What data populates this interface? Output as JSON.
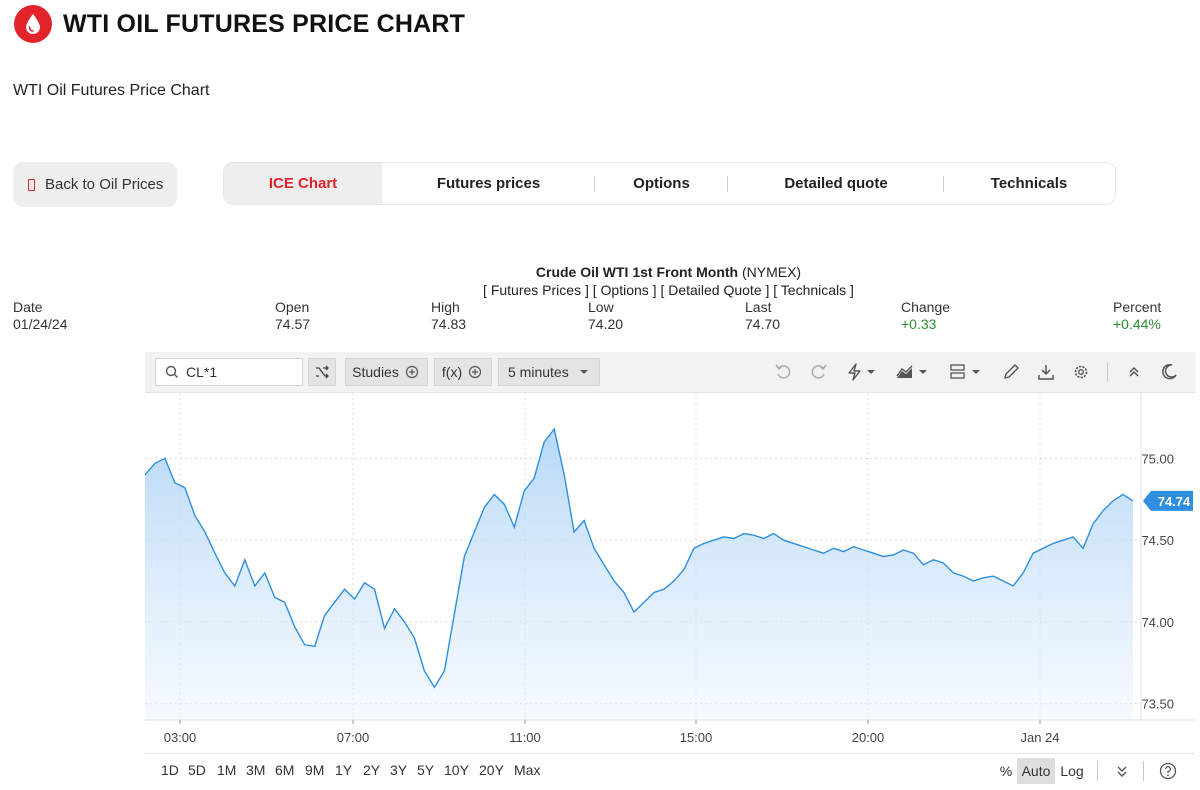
{
  "header": {
    "title": "WTI OIL FUTURES PRICE CHART",
    "logo_icon": "oil-drop-icon",
    "logo_color": "#e3232b"
  },
  "subtitle": "WTI Oil Futures Price Chart",
  "back_button": {
    "label": "Back to Oil Prices",
    "icon": "back-icon"
  },
  "tabs": [
    {
      "label": "ICE Chart",
      "active": true
    },
    {
      "label": "Futures prices"
    },
    {
      "label": "Options"
    },
    {
      "label": "Detailed quote"
    },
    {
      "label": "Technicals"
    }
  ],
  "chart_header": {
    "name": "Crude Oil WTI 1st Front Month",
    "exchange": "(NYMEX)",
    "links": "[ Futures Prices ] [ Options ] [ Detailed Quote ] [ Technicals ]"
  },
  "quote": [
    {
      "label": "Date",
      "value": "01/24/24"
    },
    {
      "label": "Open",
      "value": "74.57"
    },
    {
      "label": "High",
      "value": "74.83"
    },
    {
      "label": "Low",
      "value": "74.20"
    },
    {
      "label": "Last",
      "value": "74.70"
    },
    {
      "label": "Change",
      "value": "+0.33",
      "positive": true
    },
    {
      "label": "Percent",
      "value": "+0.44%",
      "positive": true
    }
  ],
  "toolbar": {
    "symbol": "CL*1",
    "studies_label": "Studies",
    "fx_label": "f(x)",
    "interval_label": "5 minutes"
  },
  "chart_data": {
    "type": "area",
    "ylim": [
      73.4,
      75.4
    ],
    "y_ticks": [
      "75.00",
      "74.50",
      "74.00",
      "73.50"
    ],
    "x_ticks": [
      "03:00",
      "07:00",
      "11:00",
      "15:00",
      "20:00",
      "Jan 24"
    ],
    "last_price_label": "74.74",
    "line_color": "#2f8fde",
    "series": [
      {
        "values": [
          74.9,
          74.97,
          75.0,
          74.85,
          74.82,
          74.65,
          74.55,
          74.42,
          74.3,
          74.22,
          74.38,
          74.22,
          74.3,
          74.15,
          74.12,
          73.97,
          73.86,
          73.85,
          74.04,
          74.12,
          74.2,
          74.14,
          74.24,
          74.2,
          73.96,
          74.08,
          74.0,
          73.9,
          73.7,
          73.6,
          73.7,
          74.05,
          74.4,
          74.55,
          74.7,
          74.78,
          74.72,
          74.58,
          74.8,
          74.88,
          75.1,
          75.18,
          74.9,
          74.55,
          74.62,
          74.45,
          74.35,
          74.25,
          74.18,
          74.06,
          74.12,
          74.18,
          74.2,
          74.25,
          74.32,
          74.45,
          74.48,
          74.5,
          74.52,
          74.51,
          74.54,
          74.53,
          74.51,
          74.54,
          74.5,
          74.48,
          74.46,
          74.44,
          74.42,
          74.45,
          74.43,
          74.46,
          74.44,
          74.42,
          74.4,
          74.41,
          74.44,
          74.42,
          74.35,
          74.38,
          74.36,
          74.3,
          74.28,
          74.25,
          74.27,
          74.28,
          74.25,
          74.22,
          74.3,
          74.42,
          74.45,
          74.48,
          74.5,
          74.52,
          74.45,
          74.6,
          74.68,
          74.74,
          74.78,
          74.74
        ]
      }
    ]
  },
  "ranges": [
    "1D",
    "5D",
    "1M",
    "3M",
    "6M",
    "9M",
    "1Y",
    "2Y",
    "3Y",
    "5Y",
    "10Y",
    "20Y",
    "Max"
  ],
  "scale": {
    "percent": "%",
    "auto": "Auto",
    "log": "Log"
  }
}
